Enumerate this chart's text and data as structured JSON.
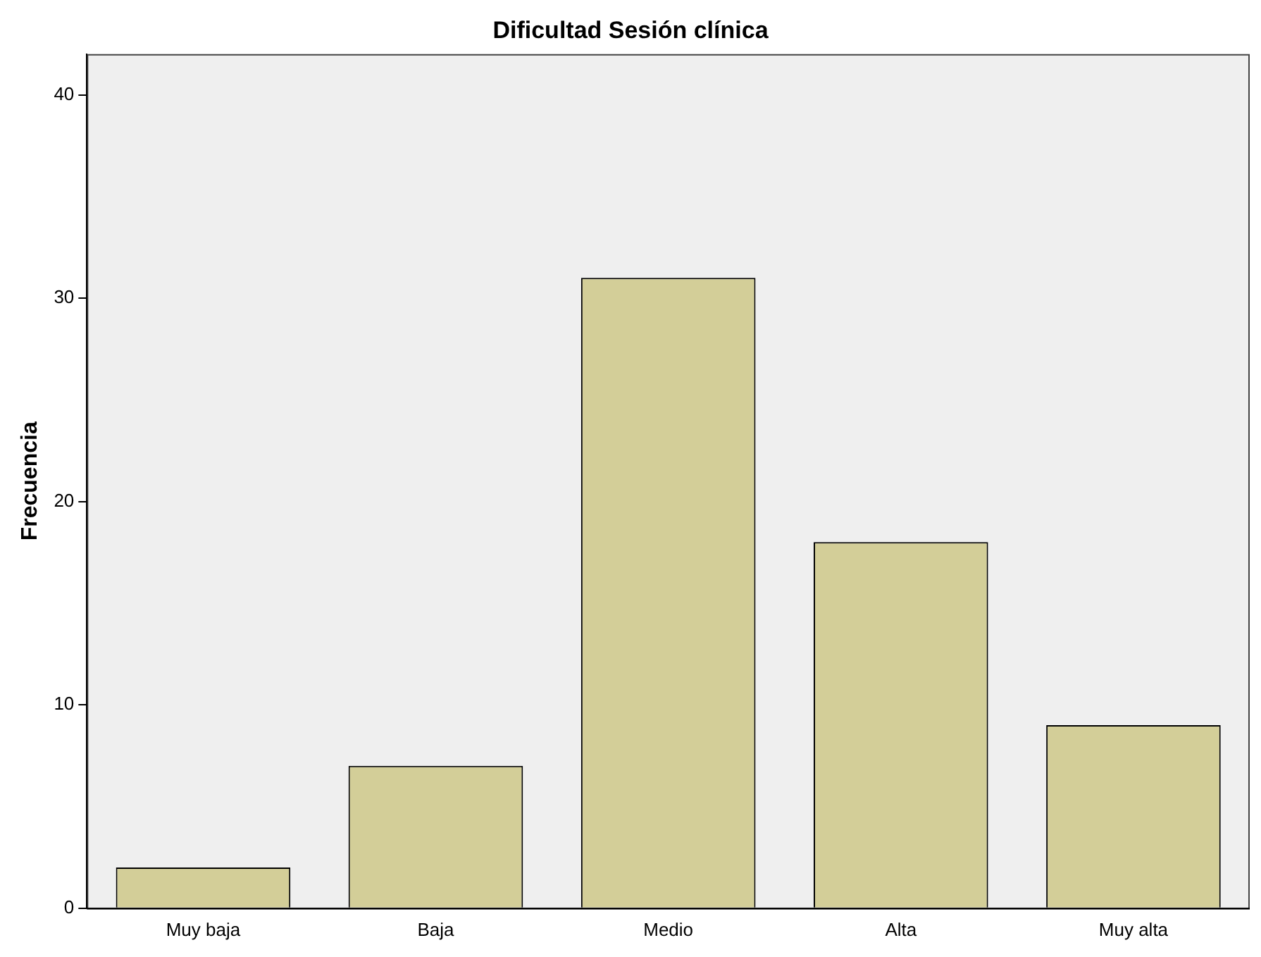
{
  "chart_data": {
    "type": "bar",
    "title": "Dificultad Sesión clínica",
    "ylabel": "Frecuencia",
    "categories": [
      "Muy baja",
      "Baja",
      "Medio",
      "Alta",
      "Muy alta"
    ],
    "values": [
      2,
      7,
      31,
      18,
      9
    ],
    "color": "#d3ce98",
    "ylim": [
      0,
      42
    ],
    "yticks": [
      0,
      10,
      20,
      30,
      40
    ],
    "grid": false,
    "legend": false
  }
}
